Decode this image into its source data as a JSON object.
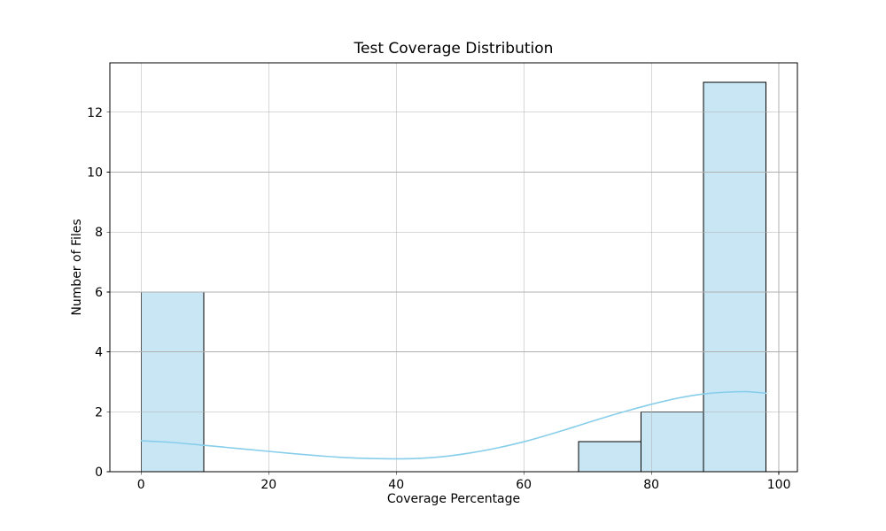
{
  "chart_data": {
    "type": "bar",
    "subtype": "histogram_with_kde",
    "title": "Test Coverage Distribution",
    "xlabel": "Coverage Percentage",
    "ylabel": "Number of Files",
    "xlim": [
      -4.9,
      102.9
    ],
    "ylim": [
      0,
      13.65
    ],
    "xticks": [
      0,
      20,
      40,
      60,
      80,
      100
    ],
    "yticks": [
      0,
      2,
      4,
      6,
      8,
      10,
      12
    ],
    "grid": true,
    "legend": false,
    "bin_width": 9.8,
    "bins": [
      {
        "x0": 0.0,
        "x1": 9.8,
        "count": 6
      },
      {
        "x0": 9.8,
        "x1": 19.6,
        "count": 0
      },
      {
        "x0": 19.6,
        "x1": 29.4,
        "count": 0
      },
      {
        "x0": 29.4,
        "x1": 39.2,
        "count": 0
      },
      {
        "x0": 39.2,
        "x1": 49.0,
        "count": 0
      },
      {
        "x0": 49.0,
        "x1": 58.8,
        "count": 0
      },
      {
        "x0": 58.8,
        "x1": 68.6,
        "count": 0
      },
      {
        "x0": 68.6,
        "x1": 78.4,
        "count": 1
      },
      {
        "x0": 78.4,
        "x1": 88.2,
        "count": 2
      },
      {
        "x0": 88.2,
        "x1": 98.0,
        "count": 13
      }
    ],
    "kde_overlay": {
      "x": [
        0,
        4,
        8,
        12,
        16,
        20,
        24,
        28,
        32,
        36,
        40,
        44,
        48,
        52,
        56,
        60,
        64,
        68,
        72,
        76,
        80,
        84,
        88,
        92,
        95,
        98
      ],
      "y": [
        1.03,
        0.99,
        0.92,
        0.84,
        0.76,
        0.68,
        0.6,
        0.53,
        0.47,
        0.44,
        0.43,
        0.45,
        0.52,
        0.64,
        0.8,
        1.0,
        1.24,
        1.5,
        1.77,
        2.02,
        2.25,
        2.45,
        2.59,
        2.66,
        2.67,
        2.62
      ]
    },
    "colors": {
      "bar_fill": "#c9e6f4",
      "bar_edge": "#000000",
      "kde_line": "#87ceeb",
      "grid": "#b0b0b0",
      "spine": "#000000",
      "text": "#000000",
      "background": "#ffffff"
    }
  }
}
